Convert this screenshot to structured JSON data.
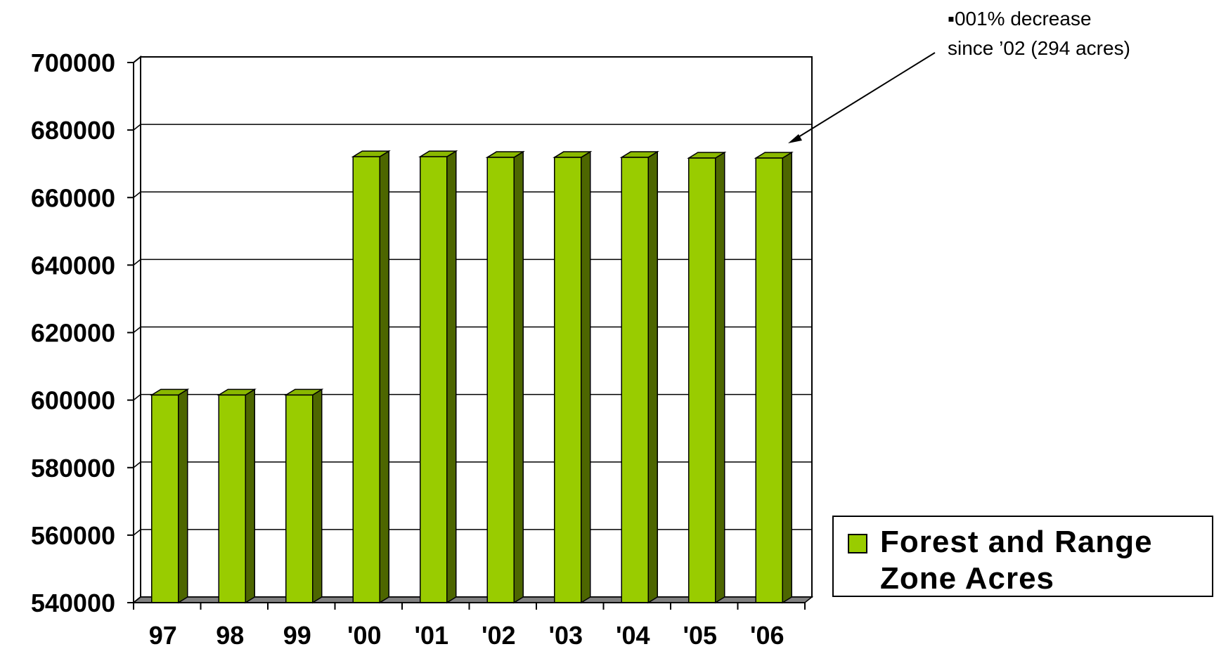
{
  "chart_data": {
    "type": "bar",
    "categories": [
      "97",
      "98",
      "99",
      "'00",
      "'01",
      "'02",
      "'03",
      "'04",
      "'05",
      "'06"
    ],
    "series": [
      {
        "name": "Forest and Range Zone Acres",
        "values": [
          601500,
          601500,
          601500,
          672100,
          672100,
          671900,
          671900,
          671900,
          671700,
          671700
        ]
      }
    ],
    "y_ticks": [
      "700000",
      "680000",
      "660000",
      "640000",
      "620000",
      "600000",
      "580000",
      "560000",
      "540000"
    ],
    "ylim": [
      540000,
      700000
    ],
    "grid": true,
    "legend_position": "bottom-right",
    "annotation": {
      "bullet": "▪",
      "line1": "001% decrease",
      "line2": "since ’02 (294 acres)"
    },
    "colors": {
      "bar_front": "#99cc00",
      "bar_side": "#4d6600",
      "bar_top": "#8ab800",
      "floor": "#808080",
      "grid": "#000000"
    }
  }
}
